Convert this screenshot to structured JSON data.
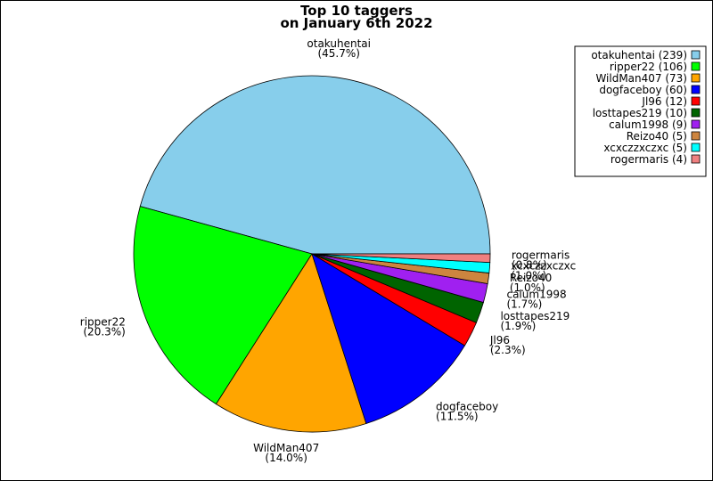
{
  "chart_data": {
    "type": "pie",
    "title": [
      "Top 10 taggers",
      "on January 6th 2022"
    ],
    "categories": [
      "otakuhentai",
      "ripper22",
      "WildMan407",
      "dogfaceboy",
      "Jl96",
      "losttapes219",
      "calum1998",
      "Reizo40",
      "xcxczzxczxc",
      "rogermaris"
    ],
    "values": [
      239,
      106,
      73,
      60,
      12,
      10,
      9,
      5,
      5,
      4
    ],
    "value_labels": [
      "(45.7%)",
      "(20.3%)",
      "(14.0%)",
      "(11.5%)",
      "(2.3%)",
      "(1.9%)",
      "(1.7%)",
      "(1.0%)",
      "(1.0%)",
      "(0.8%)"
    ],
    "legend_labels": [
      "otakuhentai (239)",
      "ripper22 (106)",
      "WildMan407 (73)",
      "dogfaceboy (60)",
      "Jl96 (12)",
      "losttapes219 (10)",
      "calum1998 (9)",
      "Reizo40 (5)",
      "xcxczzxczxc (5)",
      "rogermaris (4)"
    ],
    "colors": [
      "#87ceeb",
      "#00ff00",
      "#ffa500",
      "#0000ff",
      "#ff0000",
      "#006400",
      "#a020f0",
      "#cd853f",
      "#00ffff",
      "#f08080"
    ],
    "legend": "upper right"
  }
}
